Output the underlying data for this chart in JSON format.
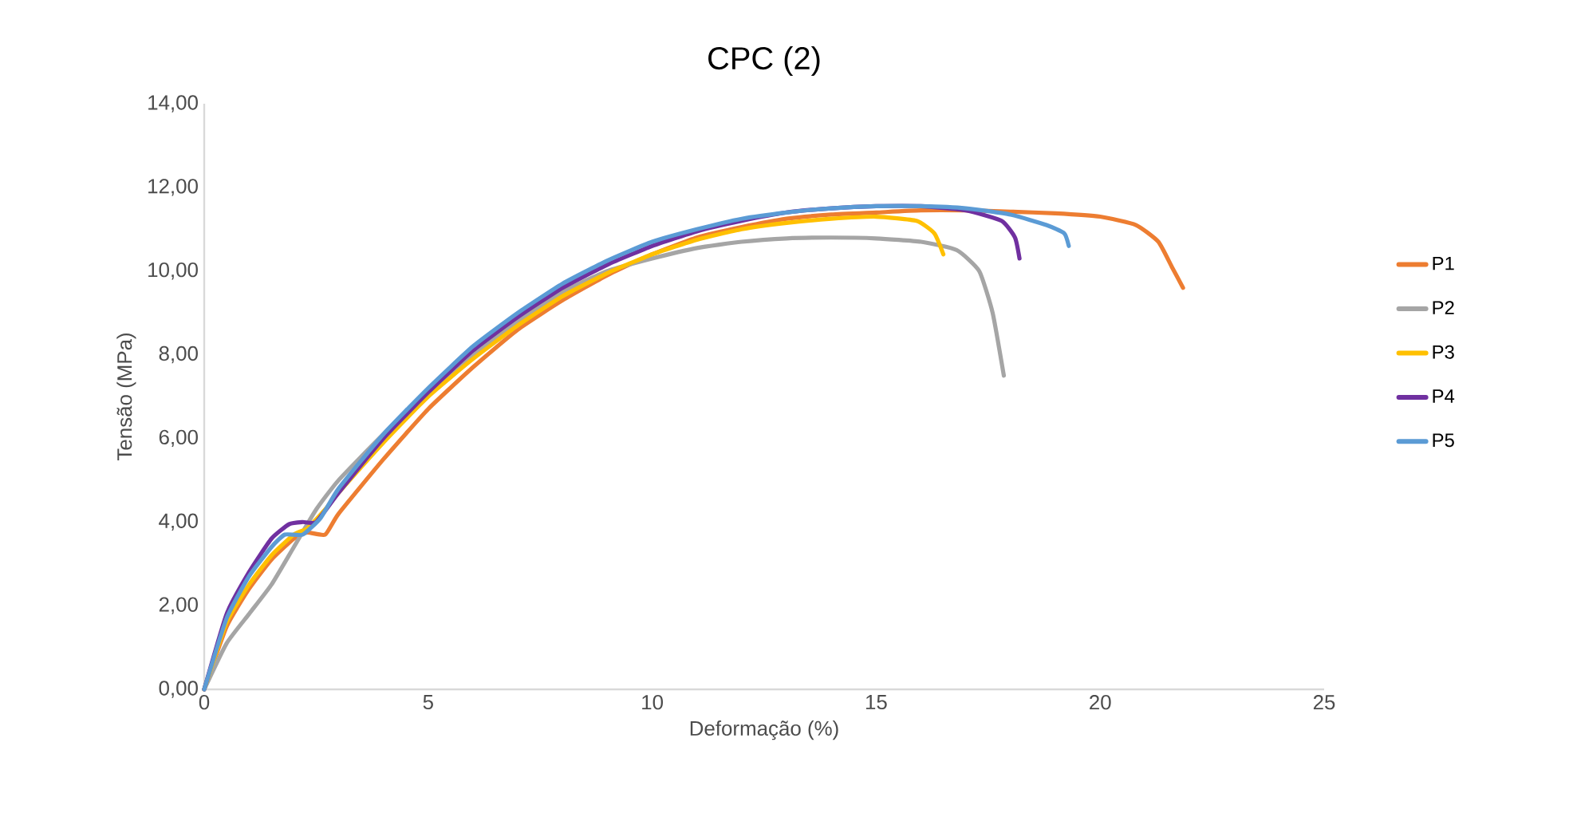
{
  "chart_data": {
    "type": "line",
    "title": "CPC (2)",
    "xlabel": "Deformação (%)",
    "ylabel": "Tensão (MPa)",
    "xlim": [
      0,
      25
    ],
    "xticks": [
      0,
      5,
      10,
      15,
      20,
      25
    ],
    "ylim": [
      0,
      14
    ],
    "yticks": [
      {
        "value": 0,
        "label": "0,00"
      },
      {
        "value": 2,
        "label": "2,00"
      },
      {
        "value": 4,
        "label": "4,00"
      },
      {
        "value": 6,
        "label": "6,00"
      },
      {
        "value": 8,
        "label": "8,00"
      },
      {
        "value": 10,
        "label": "10,00"
      },
      {
        "value": 12,
        "label": "12,00"
      },
      {
        "value": 14,
        "label": "14,00"
      }
    ],
    "legend": "right",
    "line_style": "solid",
    "series": [
      {
        "name": "P1",
        "color": "#ed7d31",
        "x": [
          0,
          0.5,
          1,
          1.5,
          2,
          2.3,
          2.7,
          3,
          4,
          5,
          6,
          7,
          8,
          9,
          10,
          11,
          12,
          13,
          14,
          15,
          16,
          17,
          18,
          19,
          20,
          20.8,
          21.3,
          21.6,
          21.85
        ],
        "values": [
          0,
          1.5,
          2.4,
          3.1,
          3.6,
          3.75,
          3.7,
          4.2,
          5.5,
          6.7,
          7.7,
          8.6,
          9.3,
          9.9,
          10.4,
          10.8,
          11.05,
          11.25,
          11.35,
          11.4,
          11.45,
          11.45,
          11.42,
          11.38,
          11.3,
          11.1,
          10.7,
          10.1,
          9.6
        ]
      },
      {
        "name": "P2",
        "color": "#a5a5a5",
        "x": [
          0,
          0.5,
          1,
          1.5,
          2,
          2.5,
          3,
          4,
          5,
          6,
          7,
          8,
          9,
          10,
          11,
          12,
          13,
          14,
          15,
          16,
          16.8,
          17.3,
          17.6,
          17.85
        ],
        "values": [
          0,
          1.1,
          1.8,
          2.5,
          3.4,
          4.3,
          5.0,
          6.1,
          7.1,
          8.0,
          8.8,
          9.5,
          10.0,
          10.3,
          10.55,
          10.7,
          10.78,
          10.8,
          10.78,
          10.7,
          10.5,
          10.0,
          9.0,
          7.5
        ]
      },
      {
        "name": "P3",
        "color": "#ffc000",
        "x": [
          0,
          0.5,
          1,
          1.5,
          2,
          2.3,
          2.7,
          3,
          4,
          5,
          6,
          7,
          8,
          9,
          10,
          11,
          12,
          13,
          14,
          15,
          15.9,
          16.3,
          16.5
        ],
        "values": [
          0,
          1.6,
          2.5,
          3.2,
          3.7,
          3.85,
          4.3,
          4.7,
          5.9,
          7.0,
          7.9,
          8.7,
          9.4,
          9.95,
          10.4,
          10.75,
          11.0,
          11.15,
          11.25,
          11.3,
          11.2,
          10.9,
          10.4
        ]
      },
      {
        "name": "P4",
        "color": "#7030a0",
        "x": [
          0,
          0.5,
          1,
          1.5,
          1.9,
          2.2,
          2.5,
          3,
          4,
          5,
          6,
          7,
          8,
          9,
          10,
          11,
          12,
          13,
          14,
          15,
          16,
          17,
          17.8,
          18.1,
          18.2
        ],
        "values": [
          0,
          1.8,
          2.8,
          3.6,
          3.95,
          4.0,
          4.0,
          4.7,
          6.0,
          7.1,
          8.1,
          8.9,
          9.6,
          10.15,
          10.6,
          10.95,
          11.2,
          11.4,
          11.5,
          11.55,
          11.55,
          11.45,
          11.2,
          10.8,
          10.3
        ]
      },
      {
        "name": "P5",
        "color": "#5b9bd5",
        "x": [
          0,
          0.5,
          1,
          1.5,
          1.8,
          2.2,
          2.6,
          3,
          4,
          5,
          6,
          7,
          8,
          9,
          10,
          11,
          12,
          13,
          14,
          15,
          16,
          17,
          18,
          18.8,
          19.2,
          19.3
        ],
        "values": [
          0,
          1.7,
          2.7,
          3.4,
          3.7,
          3.7,
          4.1,
          4.8,
          6.1,
          7.2,
          8.2,
          9.0,
          9.7,
          10.25,
          10.7,
          11.0,
          11.25,
          11.4,
          11.5,
          11.55,
          11.55,
          11.5,
          11.35,
          11.1,
          10.9,
          10.6
        ]
      }
    ]
  }
}
